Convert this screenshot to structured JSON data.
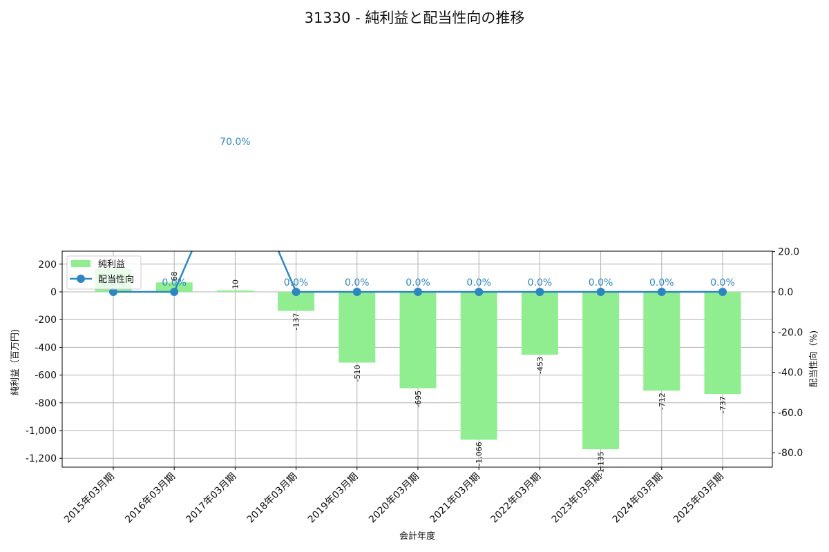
{
  "chart_data": {
    "type": "bar+line",
    "title": "31330 - 純利益と配当性向の推移",
    "xlabel": "会計年度",
    "ylabel_left": "純利益（百万円)",
    "ylabel_right": "配当性向（%)",
    "categories": [
      "2015年03月期",
      "2016年03月期",
      "2017年03月期",
      "2018年03月期",
      "2019年03月期",
      "2020年03月期",
      "2021年03月期",
      "2022年03月期",
      "2023年03月期",
      "2024年03月期",
      "2025年03月期"
    ],
    "series": [
      {
        "name": "純利益",
        "type": "bar",
        "axis": "left",
        "color": "#90ee90",
        "values": [
          165,
          68,
          10,
          -137,
          -510,
          -695,
          -1066,
          -453,
          -1135,
          -712,
          -737
        ],
        "labels": [
          "",
          "68",
          "10",
          "-137",
          "-510",
          "-695",
          "-1,066",
          "-453",
          "-1,135",
          "-712",
          "-737"
        ]
      },
      {
        "name": "配当性向",
        "type": "line",
        "axis": "right",
        "color": "#2e86c1",
        "values": [
          0.0,
          0.0,
          70.0,
          0.0,
          0.0,
          0.0,
          0.0,
          0.0,
          0.0,
          0.0,
          0.0
        ],
        "labels": [
          "0.0%",
          "0.0%",
          "70.0%",
          "0.0%",
          "0.0%",
          "0.0%",
          "0.0%",
          "0.0%",
          "0.0%",
          "0.0%",
          "0.0%"
        ]
      }
    ],
    "ylim_left": [
      -1260,
      290
    ],
    "ylim_right": [
      -87,
      20
    ],
    "yticks_left": [
      "200",
      "0",
      "-200",
      "-400",
      "-600",
      "-800",
      "-1,000",
      "-1,200"
    ],
    "yticks_right": [
      "20.0",
      "0.0",
      "-20.0",
      "-40.0",
      "-60.0",
      "-80.0"
    ],
    "grid": true,
    "legend": {
      "position": "upper left",
      "entries": [
        "純利益",
        "配当性向"
      ]
    }
  }
}
